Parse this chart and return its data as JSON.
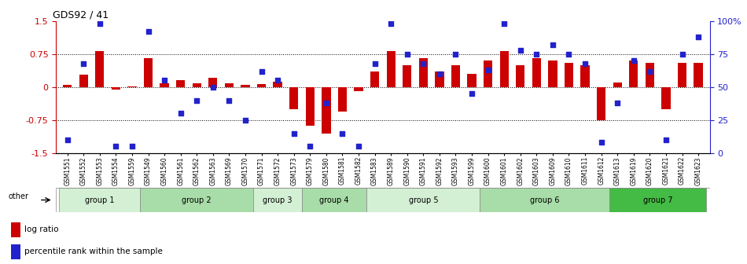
{
  "title": "GDS92 / 41",
  "samples": [
    "GSM1551",
    "GSM1552",
    "GSM1553",
    "GSM1554",
    "GSM1559",
    "GSM1549",
    "GSM1560",
    "GSM1561",
    "GSM1562",
    "GSM1563",
    "GSM1569",
    "GSM1570",
    "GSM1571",
    "GSM1572",
    "GSM1573",
    "GSM1579",
    "GSM1580",
    "GSM1581",
    "GSM1582",
    "GSM1583",
    "GSM1589",
    "GSM1590",
    "GSM1591",
    "GSM1592",
    "GSM1593",
    "GSM1599",
    "GSM1600",
    "GSM1601",
    "GSM1602",
    "GSM1603",
    "GSM1609",
    "GSM1610",
    "GSM1611",
    "GSM1612",
    "GSM1613",
    "GSM1619",
    "GSM1620",
    "GSM1621",
    "GSM1622",
    "GSM1623"
  ],
  "log_ratio": [
    0.05,
    0.28,
    0.82,
    -0.05,
    0.02,
    0.65,
    0.08,
    0.15,
    0.08,
    0.22,
    0.08,
    0.05,
    0.07,
    0.12,
    -0.5,
    -0.88,
    -1.05,
    -0.55,
    -0.1,
    0.35,
    0.82,
    0.5,
    0.65,
    0.35,
    0.5,
    0.3,
    0.6,
    0.82,
    0.5,
    0.65,
    0.6,
    0.55,
    0.5,
    -0.75,
    0.1,
    0.6,
    0.55,
    -0.5,
    0.55,
    0.55
  ],
  "percentile": [
    10,
    68,
    98,
    5,
    5,
    92,
    55,
    30,
    40,
    50,
    40,
    25,
    62,
    55,
    15,
    5,
    38,
    15,
    5,
    68,
    98,
    75,
    68,
    60,
    75,
    45,
    63,
    98,
    78,
    75,
    82,
    75,
    68,
    8,
    38,
    70,
    62,
    10,
    75,
    88
  ],
  "groups": [
    {
      "name": "group 1",
      "start": 0,
      "end": 4
    },
    {
      "name": "group 2",
      "start": 5,
      "end": 11
    },
    {
      "name": "group 3",
      "start": 12,
      "end": 14
    },
    {
      "name": "group 4",
      "start": 15,
      "end": 18
    },
    {
      "name": "group 5",
      "start": 19,
      "end": 25
    },
    {
      "name": "group 6",
      "start": 26,
      "end": 33
    },
    {
      "name": "group 7",
      "start": 34,
      "end": 39
    }
  ],
  "group_colors": [
    "#d4f0d4",
    "#a8dca8",
    "#d4f0d4",
    "#a8dca8",
    "#d4f0d4",
    "#a8dca8",
    "#44bb44"
  ],
  "bar_color": "#cc0000",
  "dot_color": "#2222cc",
  "ylim_left": [
    -1.5,
    1.5
  ],
  "ylim_right": [
    0,
    100
  ],
  "yticks_left": [
    -1.5,
    -0.75,
    0.0,
    0.75,
    1.5
  ],
  "yticks_right": [
    0,
    25,
    50,
    75,
    100
  ],
  "hlines": [
    0.75,
    0.0,
    -0.75
  ],
  "legend_items": [
    "log ratio",
    "percentile rank within the sample"
  ],
  "bar_width": 0.55,
  "other_label": "other"
}
